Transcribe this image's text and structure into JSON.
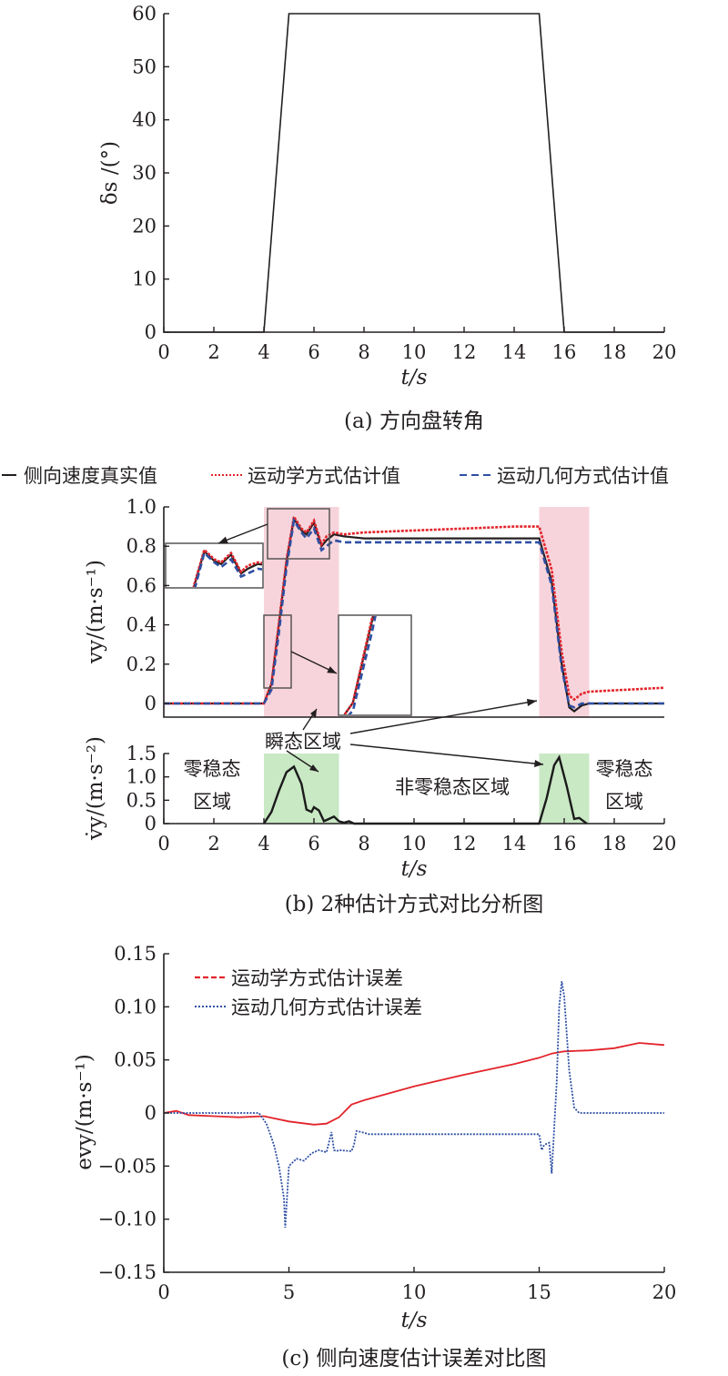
{
  "chart_data": [
    {
      "type": "line",
      "caption": "(a) 方向盘转角",
      "xlabel": "t/s",
      "ylabel": "δs /(°)",
      "xlim": [
        0,
        20
      ],
      "ylim": [
        0,
        60
      ],
      "xticks": [
        "0",
        "2",
        "4",
        "6",
        "8",
        "10",
        "12",
        "14",
        "16",
        "18",
        "20"
      ],
      "yticks": [
        "0",
        "10",
        "20",
        "30",
        "40",
        "50",
        "60"
      ],
      "grid": false,
      "series": [
        {
          "x": [
            0,
            4,
            5,
            15,
            16,
            20
          ],
          "y": [
            0,
            0,
            60,
            60,
            0,
            0
          ]
        }
      ]
    },
    {
      "type": "line",
      "caption": "(b) 2种估计方式对比分析图",
      "xlabel": "t/s",
      "ylabel": "vy/(m·s⁻¹)",
      "ylabel_lower": "v̇y/(m·s⁻²)",
      "xlim": [
        0,
        20
      ],
      "ylim": [
        -0.05,
        1.0
      ],
      "ylim_lower": [
        0,
        1.5
      ],
      "xticks": [
        "0",
        "2",
        "4",
        "6",
        "8",
        "10",
        "12",
        "14",
        "16",
        "18",
        "20"
      ],
      "yticks": [
        "0",
        "0.2",
        "0.4",
        "0.6",
        "0.8",
        "1.0"
      ],
      "yticks_lower": [
        "0",
        "0.5",
        "1.0",
        "1.5"
      ],
      "legend": {
        "position": "top",
        "items": [
          "侧向速度真实值",
          "运动学方式估计值",
          "运动几何方式估计值"
        ]
      },
      "colors": {
        "true": "#231f20",
        "kin": "#e3242b",
        "geo": "#2e4fa3",
        "transient": "#f7d4dc",
        "steady": "#c9e8c4"
      },
      "shaded_regions_transient": [
        [
          4,
          7
        ],
        [
          15,
          17
        ]
      ],
      "annotations": {
        "transient": "瞬态区域",
        "zero_steady_left": [
          "零稳态",
          "区域"
        ],
        "nonzero_steady": "非零稳态区域",
        "zero_steady_right": [
          "零稳态",
          "区域"
        ]
      },
      "series": [
        {
          "name": "侧向速度真实值",
          "x": [
            0,
            4,
            4.3,
            4.6,
            4.9,
            5.2,
            5.5,
            5.7,
            6.0,
            6.3,
            6.5,
            6.8,
            7.2,
            8,
            10,
            12,
            14,
            15,
            15.5,
            15.9,
            16.2,
            16.4,
            16.7,
            17,
            20
          ],
          "y": [
            0,
            0,
            0.1,
            0.4,
            0.72,
            0.94,
            0.88,
            0.86,
            0.92,
            0.8,
            0.83,
            0.86,
            0.85,
            0.84,
            0.84,
            0.84,
            0.84,
            0.84,
            0.62,
            0.2,
            -0.02,
            -0.04,
            -0.01,
            0,
            0
          ]
        },
        {
          "name": "运动学方式估计值",
          "x": [
            0,
            4,
            4.3,
            4.6,
            4.9,
            5.2,
            5.5,
            5.7,
            6.0,
            6.3,
            6.5,
            6.8,
            7.2,
            8,
            10,
            12,
            14,
            15,
            15.5,
            15.9,
            16.2,
            16.4,
            16.7,
            17,
            20
          ],
          "y": [
            0,
            0,
            0.1,
            0.41,
            0.73,
            0.95,
            0.89,
            0.87,
            0.93,
            0.81,
            0.85,
            0.87,
            0.86,
            0.87,
            0.88,
            0.89,
            0.9,
            0.9,
            0.68,
            0.26,
            0.04,
            0.02,
            0.05,
            0.06,
            0.08
          ]
        },
        {
          "name": "运动几何方式估计值",
          "x": [
            0,
            4,
            4.3,
            4.6,
            4.9,
            5.2,
            5.5,
            5.7,
            6.0,
            6.3,
            6.5,
            6.8,
            7.2,
            8,
            10,
            12,
            14,
            15,
            15.5,
            15.9,
            16.2,
            16.4,
            16.7,
            17,
            20
          ],
          "y": [
            0,
            0,
            0.07,
            0.36,
            0.69,
            0.93,
            0.87,
            0.84,
            0.89,
            0.78,
            0.8,
            0.83,
            0.82,
            0.82,
            0.82,
            0.82,
            0.82,
            0.82,
            0.6,
            0.18,
            -0.01,
            -0.02,
            0,
            0,
            0
          ]
        },
        {
          "name": "v̇y",
          "x": [
            4,
            4.3,
            4.6,
            4.9,
            5.2,
            5.5,
            5.7,
            5.9,
            6.0,
            6.2,
            6.4,
            6.6,
            6.8,
            7.0,
            7.2,
            7.4,
            7.6,
            15,
            15.3,
            15.6,
            15.8,
            16.1,
            16.4,
            16.6,
            16.9
          ],
          "y": [
            0,
            0.25,
            0.7,
            1.1,
            1.22,
            0.85,
            0.3,
            0.25,
            0.35,
            0.28,
            0.05,
            0.1,
            0.15,
            0.05,
            0.02,
            0.05,
            0,
            0,
            0.55,
            1.25,
            1.42,
            0.8,
            0.1,
            0.12,
            0
          ]
        }
      ],
      "insets": [
        {
          "zoom_x": [
            4.1,
            5.2
          ],
          "zoom_y": [
            0.06,
            0.42
          ]
        },
        {
          "zoom_x": [
            4.1,
            6.9
          ],
          "zoom_y": [
            0.72,
            0.98
          ]
        }
      ]
    },
    {
      "type": "line",
      "caption": "(c) 侧向速度估计误差对比图",
      "xlabel": "t/s",
      "ylabel": "evy/(m·s⁻¹)",
      "xlim": [
        0,
        20
      ],
      "ylim": [
        -0.15,
        0.15
      ],
      "xticks": [
        "0",
        "5",
        "10",
        "15",
        "20"
      ],
      "yticks": [
        "-0.15",
        "-0.10",
        "-0.05",
        "0",
        "0.05",
        "0.10",
        "0.15"
      ],
      "grid": false,
      "legend": {
        "position": "top-left",
        "items": [
          "运动学方式估计误差",
          "运动几何方式估计误差"
        ]
      },
      "series": [
        {
          "name": "运动学方式估计误差",
          "x": [
            0,
            0.5,
            1,
            2,
            3,
            4,
            5,
            6,
            6.5,
            7,
            7.5,
            8,
            10,
            12,
            14,
            15,
            15.5,
            16,
            17,
            18,
            19,
            20
          ],
          "y": [
            0,
            0.002,
            -0.002,
            -0.003,
            -0.004,
            -0.003,
            -0.008,
            -0.011,
            -0.01,
            -0.004,
            0.008,
            0.012,
            0.025,
            0.036,
            0.046,
            0.052,
            0.056,
            0.058,
            0.059,
            0.061,
            0.066,
            0.064
          ]
        },
        {
          "name": "运动几何方式估计误差",
          "x": [
            0,
            3.8,
            4.1,
            4.4,
            4.6,
            4.8,
            4.85,
            5.0,
            5.3,
            5.6,
            5.9,
            6.2,
            6.5,
            6.7,
            6.8,
            6.9,
            7.0,
            7.5,
            7.6,
            7.7,
            7.9,
            8.2,
            9,
            10,
            12,
            14,
            15,
            15.1,
            15.2,
            15.4,
            15.5,
            15.7,
            15.8,
            15.9,
            16.0,
            16.2,
            16.4,
            16.6,
            20
          ],
          "y": [
            0,
            0,
            -0.01,
            -0.03,
            -0.05,
            -0.08,
            -0.108,
            -0.05,
            -0.043,
            -0.045,
            -0.038,
            -0.035,
            -0.037,
            -0.018,
            -0.035,
            -0.036,
            -0.035,
            -0.036,
            -0.03,
            -0.017,
            -0.018,
            -0.02,
            -0.02,
            -0.02,
            -0.02,
            -0.02,
            -0.02,
            -0.035,
            -0.03,
            -0.028,
            -0.057,
            0.03,
            0.1,
            0.124,
            0.11,
            0.04,
            0.005,
            0,
            0
          ]
        }
      ]
    }
  ]
}
